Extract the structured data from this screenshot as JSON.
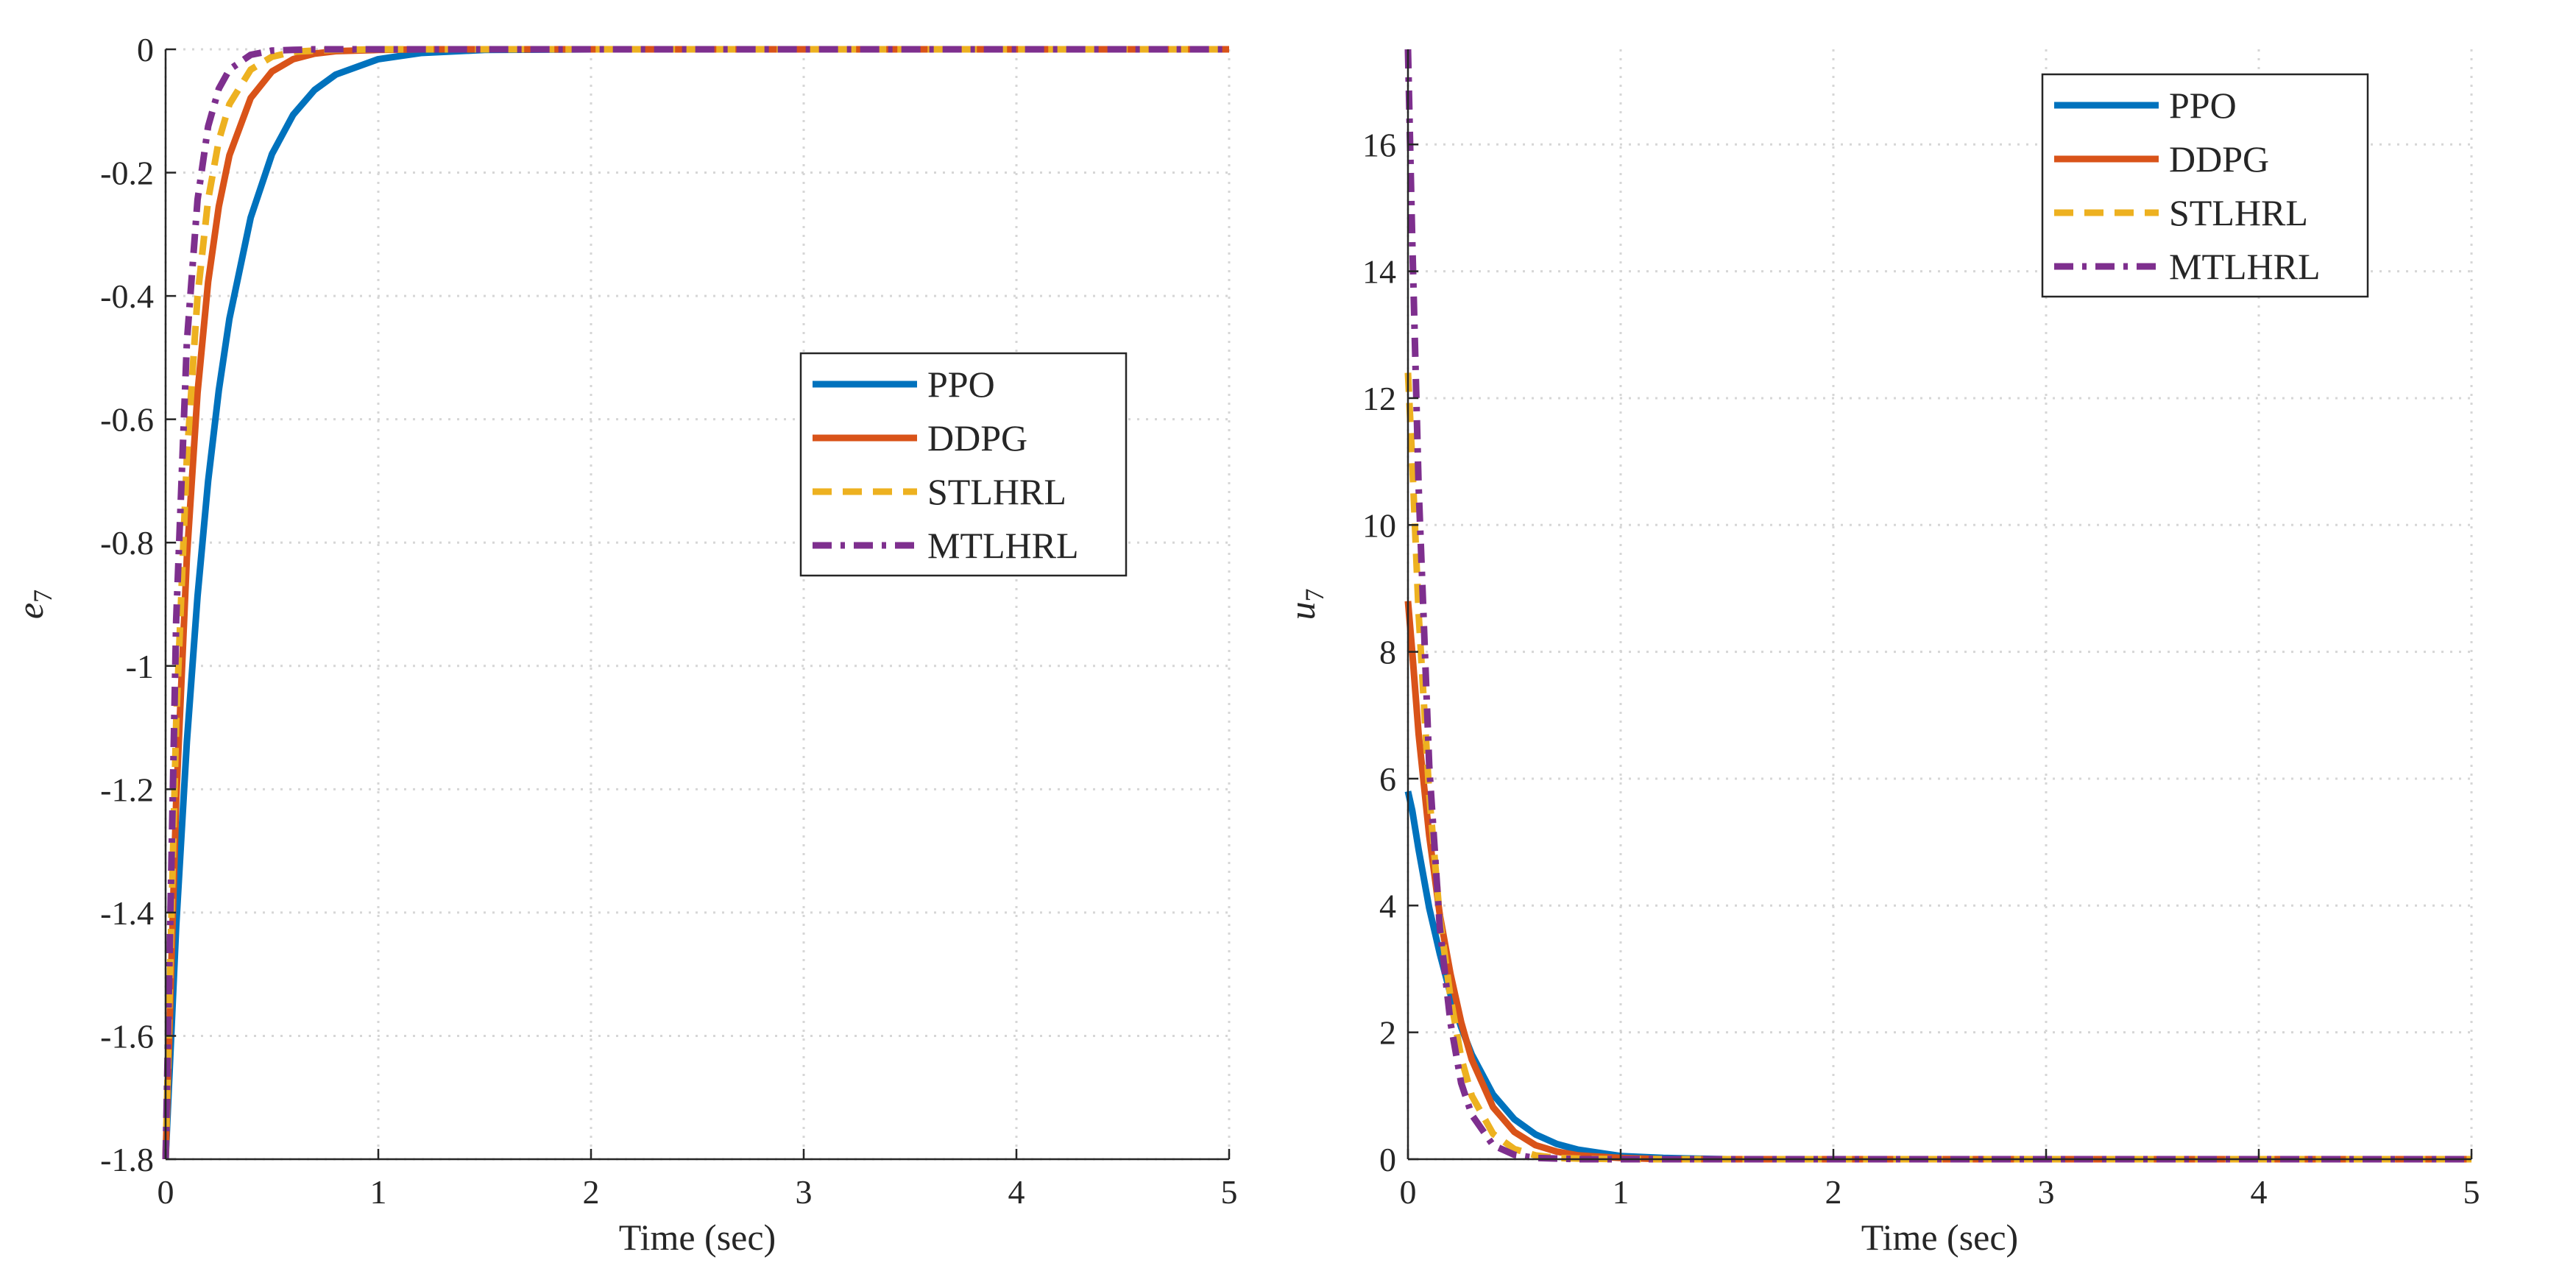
{
  "chart_data": [
    {
      "type": "line",
      "xlabel": "Time (sec)",
      "ylabel_base": "e",
      "ylabel_sub": "7",
      "xlim": [
        0,
        5
      ],
      "ylim": [
        -1.8,
        0
      ],
      "xticks": [
        0,
        1,
        2,
        3,
        4,
        5
      ],
      "xtick_labels": [
        "0",
        "1",
        "2",
        "3",
        "4",
        "5"
      ],
      "yticks": [
        0,
        -0.2,
        -0.4,
        -0.6,
        -0.8,
        -1,
        -1.2,
        -1.4,
        -1.6,
        -1.8
      ],
      "ytick_labels": [
        "0",
        "-0.2",
        "-0.4",
        "-0.6",
        "-0.8",
        "-1",
        "-1.2",
        "-1.4",
        "-1.6",
        "-1.8"
      ],
      "grid": true,
      "legend_position": "center-right",
      "x": [
        0,
        0.05,
        0.1,
        0.15,
        0.2,
        0.25,
        0.3,
        0.4,
        0.5,
        0.6,
        0.7,
        0.8,
        1.0,
        1.2,
        1.5,
        2.0,
        2.5,
        3.0,
        4.0,
        5.0
      ],
      "series": [
        {
          "name": "PPO",
          "values": [
            -1.8,
            -1.422,
            -1.123,
            -0.887,
            -0.7,
            -0.553,
            -0.437,
            -0.273,
            -0.17,
            -0.106,
            -0.066,
            -0.041,
            -0.016,
            -0.006,
            -0.001,
            0,
            0,
            0,
            0,
            0
          ]
        },
        {
          "name": "DDPG",
          "values": [
            -1.8,
            -1.218,
            -0.824,
            -0.557,
            -0.377,
            -0.255,
            -0.172,
            -0.079,
            -0.036,
            -0.016,
            -0.007,
            -0.003,
            -0.001,
            0,
            0,
            0,
            0,
            0,
            0,
            0
          ]
        },
        {
          "name": "STLHRL",
          "values": [
            -1.8,
            -1.091,
            -0.662,
            -0.401,
            -0.244,
            -0.148,
            -0.089,
            -0.033,
            -0.012,
            -0.004,
            -0.002,
            -0.001,
            0,
            0,
            0,
            0,
            0,
            0,
            0,
            0
          ]
        },
        {
          "name": "MTLHRL",
          "values": [
            -1.8,
            -0.925,
            -0.475,
            -0.244,
            -0.125,
            -0.064,
            -0.033,
            -0.009,
            -0.002,
            -0.001,
            0,
            0,
            0,
            0,
            0,
            0,
            0,
            0,
            0,
            0
          ]
        }
      ]
    },
    {
      "type": "line",
      "xlabel": "Time (sec)",
      "ylabel_base": "u",
      "ylabel_sub": "7",
      "xlim": [
        0,
        5
      ],
      "ylim": [
        0,
        17.5
      ],
      "xticks": [
        0,
        1,
        2,
        3,
        4,
        5
      ],
      "xtick_labels": [
        "0",
        "1",
        "2",
        "3",
        "4",
        "5"
      ],
      "yticks": [
        0,
        2,
        4,
        6,
        8,
        10,
        12,
        14,
        16
      ],
      "ytick_labels": [
        "0",
        "2",
        "4",
        "6",
        "8",
        "10",
        "12",
        "14",
        "16"
      ],
      "grid": true,
      "legend_position": "top-right",
      "x": [
        0,
        0.02,
        0.05,
        0.1,
        0.15,
        0.2,
        0.25,
        0.3,
        0.4,
        0.5,
        0.6,
        0.7,
        0.8,
        1.0,
        1.2,
        1.5,
        2.0,
        3.0,
        4.0,
        5.0
      ],
      "series": [
        {
          "name": "PPO",
          "values": [
            5.8,
            5.5,
            4.88,
            3.96,
            3.24,
            2.6,
            2.08,
            1.65,
            1.02,
            0.63,
            0.39,
            0.24,
            0.15,
            0.05,
            0.02,
            0,
            0,
            0,
            0,
            0
          ]
        },
        {
          "name": "DDPG",
          "values": [
            8.8,
            8.0,
            6.7,
            5.1,
            3.85,
            2.92,
            2.16,
            1.57,
            0.82,
            0.43,
            0.22,
            0.12,
            0.06,
            0.02,
            0,
            0,
            0,
            0,
            0,
            0
          ]
        },
        {
          "name": "STLHRL",
          "values": [
            12.4,
            11.0,
            8.6,
            5.75,
            3.8,
            2.55,
            1.6,
            1.0,
            0.4,
            0.16,
            0.06,
            0.02,
            0.01,
            0,
            0,
            0,
            0,
            0,
            0,
            0
          ]
        },
        {
          "name": "MTLHRL",
          "values": [
            17.5,
            14.5,
            10.6,
            6.2,
            3.65,
            2.15,
            1.2,
            0.7,
            0.22,
            0.07,
            0.02,
            0.01,
            0,
            0,
            0,
            0,
            0,
            0,
            0,
            0
          ]
        }
      ]
    }
  ],
  "series_styles": [
    {
      "name": "PPO",
      "color": "#0072BD",
      "dash": "solid"
    },
    {
      "name": "DDPG",
      "color": "#D95319",
      "dash": "solid"
    },
    {
      "name": "STLHRL",
      "color": "#EDB120",
      "dash": "dashed"
    },
    {
      "name": "MTLHRL",
      "color": "#7E2F8E",
      "dash": "dashdot"
    }
  ]
}
